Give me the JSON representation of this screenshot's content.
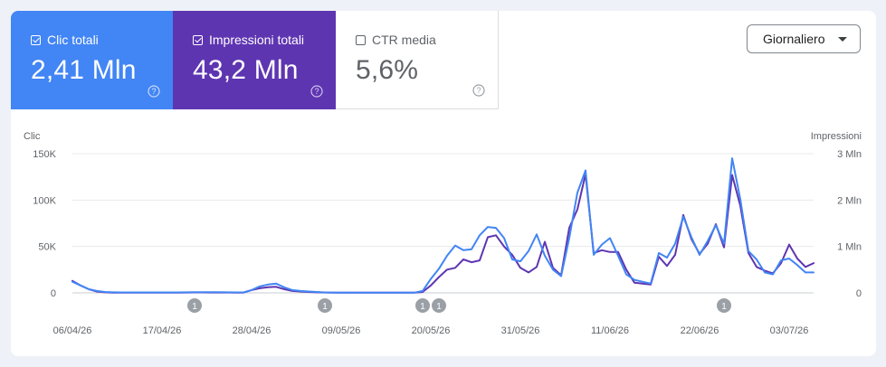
{
  "metrics": [
    {
      "label": "Clic totali",
      "value": "2,41 Mln",
      "checked": true,
      "color": "#4285f4"
    },
    {
      "label": "Impressioni totali",
      "value": "43,2 Mln",
      "checked": true,
      "color": "#5e35b1"
    },
    {
      "label": "CTR media",
      "value": "5,6%",
      "checked": false,
      "color": "#ffffff"
    }
  ],
  "dropdown": {
    "label": "Giornaliero"
  },
  "chart_data": {
    "type": "line",
    "y_left": {
      "label": "Clic",
      "ticks": [
        "150K",
        "100K",
        "50K",
        "0"
      ],
      "max": 150000
    },
    "y_right": {
      "label": "Impressioni",
      "ticks": [
        "3 Mln",
        "2 Mln",
        "1 Mln",
        "0"
      ],
      "max": 3000000
    },
    "x_ticks": [
      {
        "label": "06/04/26",
        "index": 0
      },
      {
        "label": "17/04/26",
        "index": 11
      },
      {
        "label": "28/04/26",
        "index": 22
      },
      {
        "label": "09/05/26",
        "index": 33
      },
      {
        "label": "20/05/26",
        "index": 44
      },
      {
        "label": "31/05/26",
        "index": 55
      },
      {
        "label": "11/06/26",
        "index": 66
      },
      {
        "label": "22/06/26",
        "index": 77
      },
      {
        "label": "03/07/26",
        "index": 88
      }
    ],
    "annotations": [
      {
        "label": "1",
        "index": 15
      },
      {
        "label": "1",
        "index": 31
      },
      {
        "label": "1",
        "index": 43
      },
      {
        "label": "1",
        "index": 45
      },
      {
        "label": "1",
        "index": 80
      }
    ],
    "series": [
      {
        "name": "Impressioni totali",
        "axis": "right",
        "color": "#5e35b1",
        "values": [
          260000,
          160000,
          80000,
          30000,
          12000,
          6000,
          5000,
          4000,
          4000,
          4000,
          4000,
          4000,
          4000,
          6000,
          8000,
          10000,
          10000,
          8000,
          8000,
          8000,
          6000,
          6000,
          60000,
          100000,
          120000,
          130000,
          80000,
          40000,
          30000,
          20000,
          12000,
          8000,
          6000,
          4000,
          4000,
          4000,
          4000,
          4000,
          4000,
          4000,
          4000,
          4000,
          4000,
          20000,
          160000,
          340000,
          500000,
          540000,
          720000,
          660000,
          700000,
          1200000,
          1240000,
          1000000,
          820000,
          540000,
          440000,
          560000,
          1100000,
          540000,
          380000,
          1400000,
          1800000,
          2560000,
          860000,
          920000,
          880000,
          880000,
          500000,
          220000,
          200000,
          180000,
          780000,
          580000,
          820000,
          1680000,
          1160000,
          840000,
          1060000,
          1480000,
          980000,
          2540000,
          1880000,
          860000,
          560000,
          480000,
          420000,
          640000,
          1040000,
          740000,
          560000,
          640000
        ]
      },
      {
        "name": "Clic totali",
        "axis": "left",
        "color": "#4285f4",
        "values": [
          12000,
          8000,
          4000,
          2000,
          1000,
          600,
          500,
          500,
          500,
          500,
          500,
          500,
          500,
          500,
          600,
          800,
          800,
          700,
          700,
          600,
          500,
          500,
          3000,
          7000,
          9000,
          10000,
          6000,
          3000,
          2000,
          1500,
          1000,
          500,
          400,
          300,
          300,
          300,
          300,
          300,
          300,
          300,
          300,
          300,
          300,
          2000,
          15000,
          26000,
          40000,
          51000,
          46000,
          47000,
          62000,
          71000,
          70000,
          59000,
          36000,
          34000,
          45000,
          63000,
          40000,
          25000,
          18000,
          59000,
          108000,
          132000,
          41000,
          52000,
          59000,
          40000,
          20000,
          14000,
          12000,
          10000,
          43000,
          38000,
          53000,
          82000,
          60000,
          41000,
          56000,
          73000,
          53000,
          145000,
          101000,
          45000,
          36000,
          22000,
          20000,
          35000,
          37000,
          30000,
          22000,
          22000
        ]
      }
    ]
  }
}
